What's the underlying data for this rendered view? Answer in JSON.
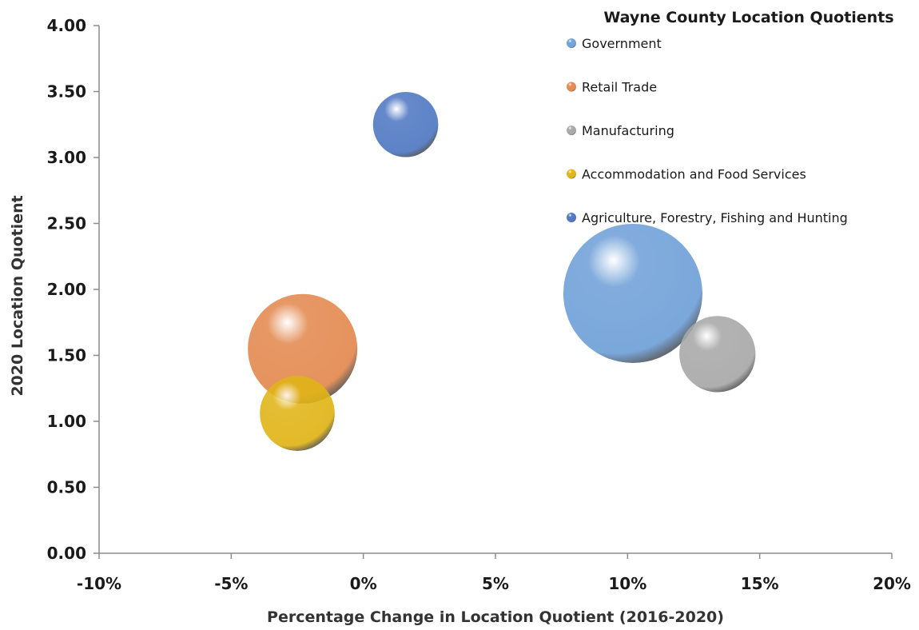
{
  "chart_data": {
    "type": "bubble",
    "title": "",
    "legend_title": "Wayne County Location Quotients",
    "legend_position": "top-right",
    "xlabel": "Percentage Change in Location Quotient (2016-2020)",
    "ylabel": "2020 Location Quotient",
    "xlim": [
      -10,
      20
    ],
    "ylim": [
      0,
      4
    ],
    "x_ticks": [
      -10,
      -5,
      0,
      5,
      10,
      15,
      20
    ],
    "x_tick_labels": [
      "-10%",
      "-5%",
      "0%",
      "5%",
      "10%",
      "15%",
      "20%"
    ],
    "y_ticks": [
      0,
      0.5,
      1,
      1.5,
      2,
      2.5,
      3,
      3.5,
      4
    ],
    "y_tick_labels": [
      "0.00",
      "0.50",
      "1.00",
      "1.50",
      "2.00",
      "2.50",
      "3.00",
      "3.50",
      "4.00"
    ],
    "grid": false,
    "series": [
      {
        "name": "Government",
        "x": 10.2,
        "y": 1.97,
        "size": 1.0,
        "color": "#6fa0d8"
      },
      {
        "name": "Retail Trade",
        "x": -2.3,
        "y": 1.55,
        "size": 0.62,
        "color": "#e3894f"
      },
      {
        "name": "Manufacturing",
        "x": 13.4,
        "y": 1.51,
        "size": 0.3,
        "color": "#a8a8a8"
      },
      {
        "name": "Accommodation and Food Services",
        "x": -2.5,
        "y": 1.06,
        "size": 0.29,
        "color": "#e0b416"
      },
      {
        "name": "Agriculture, Forestry, Fishing and Hunting",
        "x": 1.6,
        "y": 3.25,
        "size": 0.22,
        "color": "#4f78c2"
      }
    ]
  }
}
